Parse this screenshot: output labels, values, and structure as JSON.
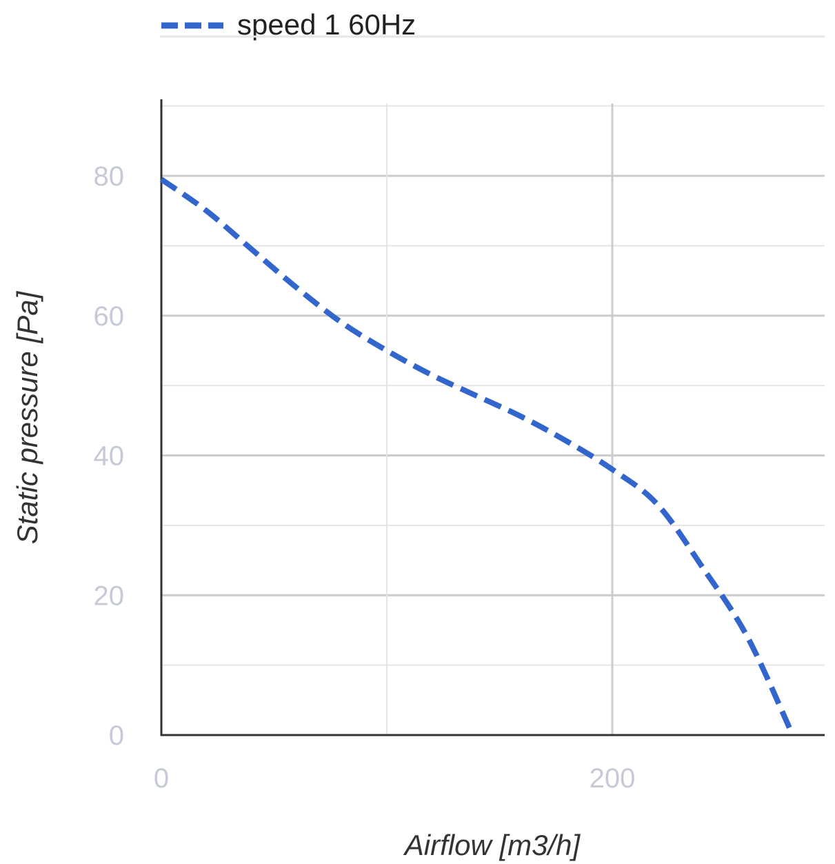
{
  "chart_data": {
    "type": "line",
    "xlabel": "Airflow [m3/h]",
    "ylabel": "Static pressure [Pa]",
    "xlim": [
      0,
      300
    ],
    "ylim": [
      0,
      90
    ],
    "x_ticks": [
      0,
      200
    ],
    "y_ticks": [
      0,
      20,
      40,
      60,
      80
    ],
    "x_gridlines": [
      100,
      200,
      300
    ],
    "y_gridlines": [
      10,
      20,
      30,
      40,
      50,
      60,
      70,
      80,
      90
    ],
    "grid": true,
    "legend_position": "top",
    "series": [
      {
        "name": "speed 1 60Hz",
        "color": "#3366cc",
        "dash": "dashed",
        "x": [
          0,
          20,
          40,
          60,
          80,
          100,
          120,
          140,
          160,
          180,
          200,
          220,
          240,
          260,
          280
        ],
        "y": [
          79.5,
          75,
          69.5,
          64,
          59,
          55,
          51.5,
          48.5,
          45.5,
          42,
          38,
          33,
          24,
          14,
          0
        ]
      }
    ]
  }
}
